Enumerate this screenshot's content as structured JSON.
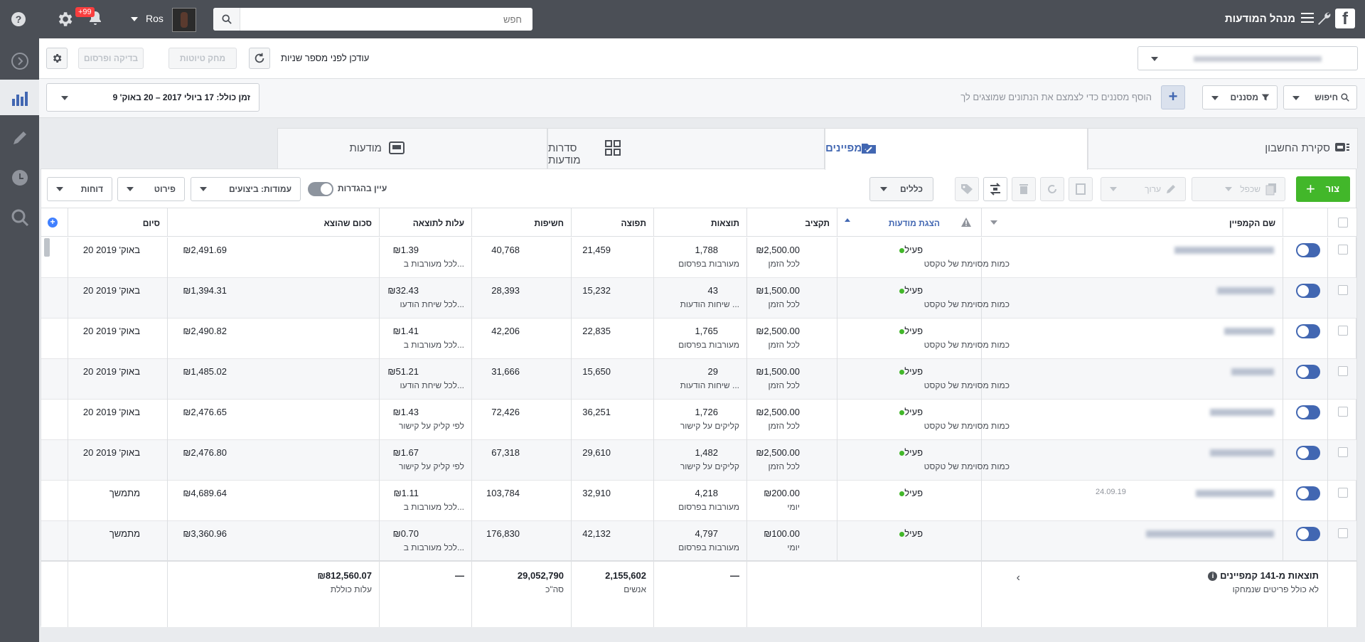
{
  "app": {
    "title": "מנהל המודעות",
    "logo": "f",
    "search_placeholder": "חפש",
    "user_name": "Ros",
    "notifications_badge": "+99"
  },
  "bar2": {
    "updated_text": "עודכן לפני מספר שניות",
    "discard_label": "מחק טיוטות",
    "review_label": "בדיקה ופרסום"
  },
  "filters": {
    "search_label": "חיפוש",
    "filters_label": "מסננים",
    "hint": "הוסף מסננים כדי לצמצם את הנתונים שמוצגים לך",
    "date_range": "זמן כולל: 17 ביולי 2017 – 20 באוק' 9"
  },
  "tabs": [
    {
      "label": "סקירת החשבון"
    },
    {
      "label": "קמפיינים"
    },
    {
      "label": "סדרות מודעות"
    },
    {
      "label": "מודעות"
    }
  ],
  "toolbar": {
    "create_label": "צור",
    "duplicate_label": "שכפל",
    "edit_label": "ערוך",
    "rules_label": "כללים",
    "view_setup_label": "עיין בהגדרות",
    "columns_label": "עמודות: ביצועים",
    "breakdown_label": "פירוט",
    "reports_label": "דוחות"
  },
  "columns": {
    "name": "שם הקמפיין",
    "delivery": "הצגת מודעות",
    "budget": "תקציב",
    "results": "תוצאות",
    "reach": "תפוצה",
    "impressions": "חשיפות",
    "cost_per_result": "עלות לתוצאה",
    "amount_spent": "סכום שהוצא",
    "ends": "סיום"
  },
  "rows": [
    {
      "delivery": "פעיל",
      "delivery_sub": "כמות מסוימת של טקסט",
      "budget": "₪2,500.00",
      "budget_sub": "לכל הזמן",
      "results": "1,788",
      "results_sub": "מעורבות בפרסום",
      "reach": "21,459",
      "impressions": "40,768",
      "cpr": "₪1.39",
      "cpr_sub": "לכל מעורבות ב...",
      "spent": "₪2,491.69",
      "ends": "20 באוק' 2019",
      "name_extra": ""
    },
    {
      "delivery": "פעיל",
      "delivery_sub": "כמות מסוימת של טקסט",
      "budget": "₪1,500.00",
      "budget_sub": "לכל הזמן",
      "results": "43",
      "results_sub": "שיחות הודעות ...",
      "reach": "15,232",
      "impressions": "28,393",
      "cpr": "₪32.43",
      "cpr_sub": "לכל שיחת הודעו...",
      "spent": "₪1,394.31",
      "ends": "20 באוק' 2019",
      "name_extra": ""
    },
    {
      "delivery": "פעיל",
      "delivery_sub": "כמות מסוימת של טקסט",
      "budget": "₪2,500.00",
      "budget_sub": "לכל הזמן",
      "results": "1,765",
      "results_sub": "מעורבות בפרסום",
      "reach": "22,835",
      "impressions": "42,206",
      "cpr": "₪1.41",
      "cpr_sub": "לכל מעורבות ב...",
      "spent": "₪2,490.82",
      "ends": "20 באוק' 2019",
      "name_extra": ""
    },
    {
      "delivery": "פעיל",
      "delivery_sub": "כמות מסוימת של טקסט",
      "budget": "₪1,500.00",
      "budget_sub": "לכל הזמן",
      "results": "29",
      "results_sub": "שיחות הודעות ...",
      "reach": "15,650",
      "impressions": "31,666",
      "cpr": "₪51.21",
      "cpr_sub": "לכל שיחת הודעו...",
      "spent": "₪1,485.02",
      "ends": "20 באוק' 2019",
      "name_extra": ""
    },
    {
      "delivery": "פעיל",
      "delivery_sub": "כמות מסוימת של טקסט",
      "budget": "₪2,500.00",
      "budget_sub": "לכל הזמן",
      "results": "1,726",
      "results_sub": "קליקים על קישור",
      "reach": "36,251",
      "impressions": "72,426",
      "cpr": "₪1.43",
      "cpr_sub": "לפי קליק על קישור",
      "spent": "₪2,476.65",
      "ends": "20 באוק' 2019",
      "name_extra": ""
    },
    {
      "delivery": "פעיל",
      "delivery_sub": "כמות מסוימת של טקסט",
      "budget": "₪2,500.00",
      "budget_sub": "לכל הזמן",
      "results": "1,482",
      "results_sub": "קליקים על קישור",
      "reach": "29,610",
      "impressions": "67,318",
      "cpr": "₪1.67",
      "cpr_sub": "לפי קליק על קישור",
      "spent": "₪2,476.80",
      "ends": "20 באוק' 2019",
      "name_extra": ""
    },
    {
      "delivery": "פעיל",
      "delivery_sub": "",
      "budget": "₪200.00",
      "budget_sub": "יומי",
      "results": "4,218",
      "results_sub": "מעורבות בפרסום",
      "reach": "32,910",
      "impressions": "103,784",
      "cpr": "₪1.11",
      "cpr_sub": "לכל מעורבות ב...",
      "spent": "₪4,689.64",
      "ends": "מתמשך",
      "name_extra": "24.09.19"
    },
    {
      "delivery": "פעיל",
      "delivery_sub": "",
      "budget": "₪100.00",
      "budget_sub": "יומי",
      "results": "4,797",
      "results_sub": "מעורבות בפרסום",
      "reach": "42,132",
      "impressions": "176,830",
      "cpr": "₪0.70",
      "cpr_sub": "לכל מעורבות ב...",
      "spent": "₪3,360.96",
      "ends": "מתמשך",
      "name_extra": ""
    }
  ],
  "totals": {
    "label": "תוצאות מ-141 קמפיינים",
    "sub": "לא כולל פריטים שנמחקו",
    "results": "—",
    "reach": "2,155,602",
    "reach_sub": "אנשים",
    "impressions": "29,052,790",
    "impressions_sub": "סה\"כ",
    "cpr": "—",
    "spent": "₪812,560.07",
    "spent_sub": "עלות כוללת"
  },
  "colors": {
    "accent": "#4267b2",
    "create_green": "#42b72a",
    "topbar": "#4b4f56",
    "active_dot": "#42b72a"
  }
}
